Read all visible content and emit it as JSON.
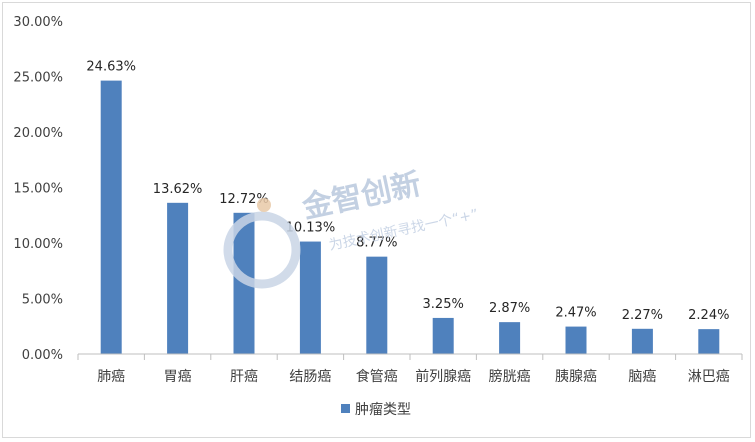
{
  "chart_data": {
    "type": "bar",
    "categories": [
      "肺癌",
      "胃癌",
      "肝癌",
      "结肠癌",
      "食管癌",
      "前列腺癌",
      "膀胱癌",
      "胰腺癌",
      "脑癌",
      "淋巴癌"
    ],
    "series": [
      {
        "name": "肿瘤类型",
        "values": [
          24.63,
          13.62,
          12.72,
          10.13,
          8.77,
          3.25,
          2.87,
          2.47,
          2.27,
          2.24
        ],
        "labels": [
          "24.63%",
          "13.62%",
          "12.72%",
          "10.13%",
          "8.77%",
          "3.25%",
          "2.87%",
          "2.47%",
          "2.27%",
          "2.24%"
        ],
        "color": "#4f81bd"
      }
    ],
    "ylim": [
      0,
      30
    ],
    "yticks": [
      0,
      5,
      10,
      15,
      20,
      25,
      30
    ],
    "ytick_labels": [
      "0.00%",
      "5.00%",
      "10.00%",
      "15.00%",
      "20.00%",
      "25.00%",
      "30.00%"
    ],
    "grid": false,
    "legend_position": "bottom",
    "title": "",
    "xlabel": "",
    "ylabel": ""
  },
  "watermark": {
    "title": "金智创新",
    "subtitle": "为技术创新寻找一个“+”",
    "color": "#b9c8dd"
  }
}
